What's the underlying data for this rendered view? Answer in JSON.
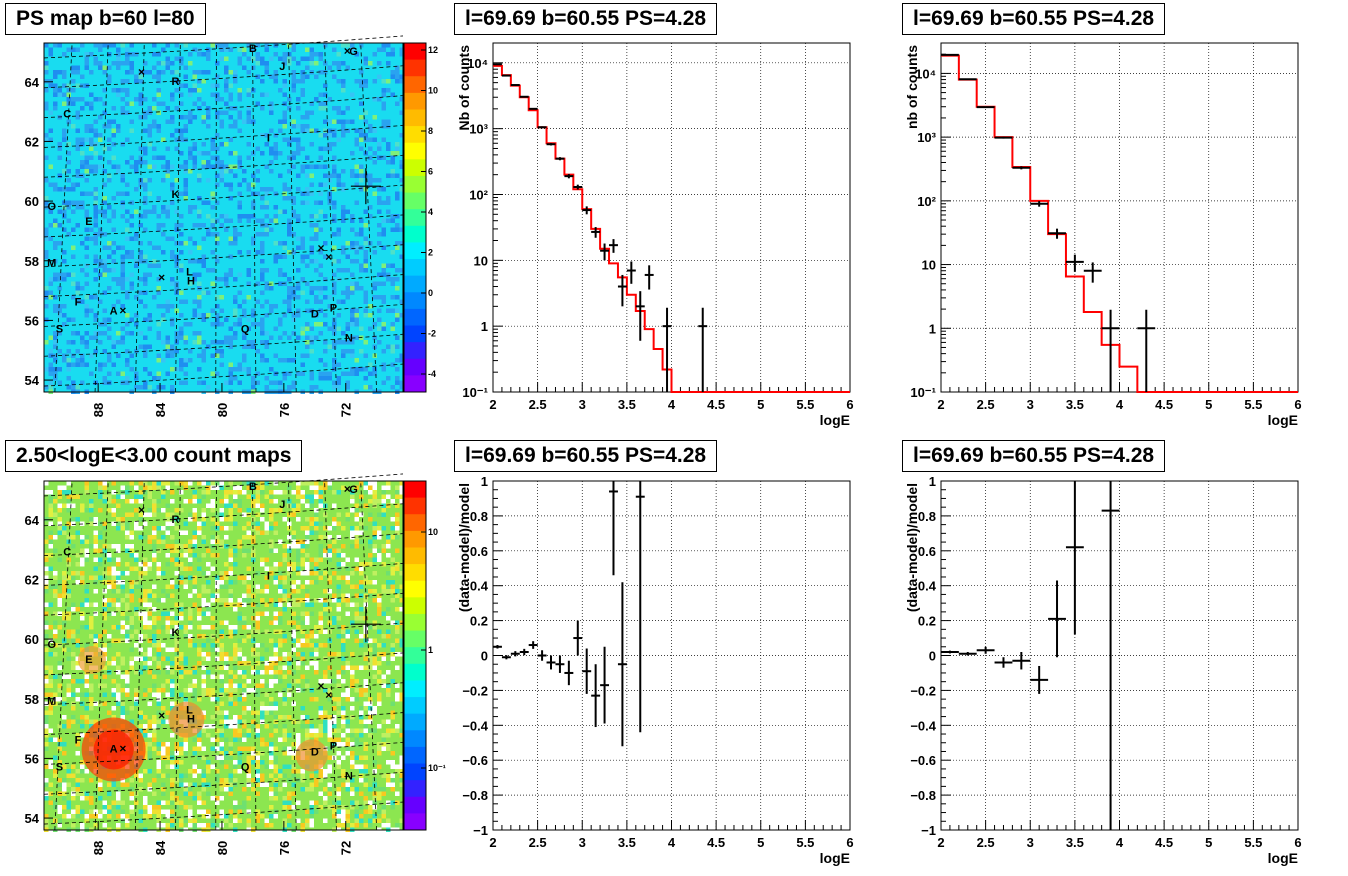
{
  "titles": {
    "map_top": "PS map b=60 l=80",
    "map_bottom": "2.50<logE<3.00 count maps",
    "spec_1": "l=69.69 b=60.55 PS=4.28",
    "spec_2": "l=69.69 b=60.55 PS=4.28",
    "res_1": "l=69.69 b=60.55 PS=4.28",
    "res_2": "l=69.69 b=60.55 PS=4.28"
  },
  "colors": {
    "model_line": "#ff0000",
    "data_marker": "#000000",
    "map_top_background": "#19dcf0",
    "map_bottom_background": "#8ce650"
  },
  "maps": {
    "x_tick_labels": [
      "88",
      "84",
      "80",
      "76",
      "72"
    ],
    "y_tick_labels": [
      "54",
      "56",
      "58",
      "60",
      "62",
      "64"
    ],
    "source_labels": [
      "A",
      "B",
      "C",
      "D",
      "E",
      "F",
      "G",
      "H",
      "I",
      "J",
      "K",
      "L",
      "M",
      "N",
      "O",
      "P",
      "Q",
      "R",
      "S"
    ],
    "top_palette_ticks": [
      "-4",
      "-2",
      "0",
      "2",
      "4",
      "6",
      "8",
      "10",
      "12"
    ],
    "bottom_palette_ticks": [
      "10⁻¹",
      "1",
      "10"
    ]
  },
  "chart_data": [
    {
      "type": "scatter",
      "title": "l=69.69 b=60.55 PS=4.28",
      "xlabel": "logE",
      "ylabel": "Nb of counts",
      "xlim": [
        2,
        6
      ],
      "ylim": [
        0.1,
        20000
      ],
      "log_y": true,
      "grid": true,
      "x_tick_labels": [
        "2",
        "2.5",
        "3",
        "3.5",
        "4",
        "4.5",
        "5",
        "5.5",
        "6"
      ],
      "y_tick_labels": [
        "10⁻¹",
        "1",
        "10",
        "10²",
        "10³",
        "10⁴"
      ],
      "series": [
        {
          "name": "model",
          "style": "step",
          "bin_edges": [
            2.0,
            2.1,
            2.2,
            2.3,
            2.4,
            2.5,
            2.6,
            2.7,
            2.8,
            2.9,
            3.0,
            3.1,
            3.2,
            3.3,
            3.4,
            3.5,
            3.6,
            3.7,
            3.8,
            3.9,
            4.0,
            4.1,
            6.0
          ],
          "values": [
            9000,
            6500,
            4500,
            3000,
            1900,
            1050,
            600,
            350,
            200,
            120,
            60,
            30,
            15,
            9,
            5.5,
            3,
            1.7,
            0.9,
            0.45,
            0.22,
            0.1,
            0.1
          ]
        },
        {
          "name": "data",
          "style": "errorbar",
          "x": [
            2.05,
            2.15,
            2.25,
            2.35,
            2.45,
            2.55,
            2.65,
            2.75,
            2.85,
            2.95,
            3.05,
            3.15,
            3.25,
            3.35,
            3.45,
            3.55,
            3.65,
            3.75,
            3.95,
            4.35
          ],
          "y": [
            9500,
            6400,
            4600,
            3050,
            2000,
            1050,
            580,
            350,
            190,
            130,
            58,
            27,
            14,
            17,
            4,
            7,
            2,
            6,
            1,
            1
          ],
          "yerr_low": [
            100,
            80,
            70,
            55,
            45,
            33,
            24,
            19,
            14,
            11,
            8,
            5,
            4,
            4,
            2,
            2.6,
            1.4,
            2.4,
            0.9,
            0.9
          ],
          "yerr_high": [
            100,
            80,
            70,
            55,
            45,
            33,
            24,
            19,
            14,
            11,
            8,
            5,
            4,
            4,
            2,
            2.6,
            1.4,
            2.4,
            0.9,
            0.9
          ]
        }
      ]
    },
    {
      "type": "scatter",
      "title": "l=69.69 b=60.55 PS=4.28",
      "xlabel": "logE",
      "ylabel": "nb of counts",
      "xlim": [
        2,
        6
      ],
      "ylim": [
        0.1,
        30000
      ],
      "log_y": true,
      "grid": true,
      "x_tick_labels": [
        "2",
        "2.5",
        "3",
        "3.5",
        "4",
        "4.5",
        "5",
        "5.5",
        "6"
      ],
      "y_tick_labels": [
        "10⁻¹",
        "1",
        "10",
        "10²",
        "10³",
        "10⁴"
      ],
      "series": [
        {
          "name": "model",
          "style": "step",
          "bin_edges": [
            2.0,
            2.2,
            2.4,
            2.6,
            2.8,
            3.0,
            3.2,
            3.4,
            3.6,
            3.8,
            4.0,
            4.2,
            4.4,
            6.0
          ],
          "values": [
            19000,
            8000,
            3000,
            1000,
            340,
            100,
            30,
            6.5,
            1.8,
            0.55,
            0.25,
            0.1,
            0.1
          ],
          "last_value": 0.1
        },
        {
          "name": "data",
          "style": "errorbar",
          "x": [
            2.1,
            2.3,
            2.5,
            2.7,
            2.9,
            3.1,
            3.3,
            3.5,
            3.7,
            3.9,
            4.3
          ],
          "y": [
            19500,
            8100,
            2950,
            980,
            330,
            90,
            31,
            11,
            8,
            1,
            1
          ],
          "yerr_low": [
            140,
            90,
            54,
            31,
            18,
            9,
            5.6,
            3.3,
            2.8,
            0.95,
            0.95
          ],
          "yerr_high": [
            140,
            90,
            54,
            31,
            18,
            9,
            5.6,
            3.3,
            2.8,
            0.95,
            0.95
          ]
        }
      ]
    },
    {
      "type": "scatter",
      "title": "l=69.69 b=60.55 PS=4.28",
      "xlabel": "logE",
      "ylabel": "(data-model)/model",
      "xlim": [
        2,
        6
      ],
      "ylim": [
        -1,
        1
      ],
      "grid": true,
      "x_tick_labels": [
        "2",
        "2.5",
        "3",
        "3.5",
        "4",
        "4.5",
        "5",
        "5.5",
        "6"
      ],
      "y_tick_labels": [
        "−1",
        "−0.8",
        "−0.6",
        "−0.4",
        "−0.2",
        "0",
        "0.2",
        "0.4",
        "0.6",
        "0.8",
        "1"
      ],
      "series": [
        {
          "name": "residual",
          "style": "errorbar",
          "x": [
            2.05,
            2.15,
            2.25,
            2.35,
            2.45,
            2.55,
            2.65,
            2.75,
            2.85,
            2.95,
            3.05,
            3.15,
            3.25,
            3.35,
            3.45,
            3.65
          ],
          "y": [
            0.05,
            -0.01,
            0.01,
            0.02,
            0.06,
            0.0,
            -0.04,
            -0.05,
            -0.1,
            0.1,
            -0.09,
            -0.23,
            -0.17,
            0.94,
            -0.05,
            0.91
          ],
          "yerr": [
            0.01,
            0.012,
            0.015,
            0.018,
            0.022,
            0.03,
            0.04,
            0.05,
            0.07,
            0.1,
            0.13,
            0.18,
            0.22,
            0.48,
            0.47,
            1.35
          ]
        }
      ]
    },
    {
      "type": "scatter",
      "title": "l=69.69 b=60.55 PS=4.28",
      "xlabel": "logE",
      "ylabel": "(data-model)/model",
      "xlim": [
        2,
        6
      ],
      "ylim": [
        -1,
        1
      ],
      "grid": true,
      "x_tick_labels": [
        "2",
        "2.5",
        "3",
        "3.5",
        "4",
        "4.5",
        "5",
        "5.5",
        "6"
      ],
      "y_tick_labels": [
        "−1",
        "−0.8",
        "−0.6",
        "−0.4",
        "−0.2",
        "0",
        "0.2",
        "0.4",
        "0.6",
        "0.8",
        "1"
      ],
      "series": [
        {
          "name": "residual",
          "style": "errorbar",
          "x": [
            2.1,
            2.3,
            2.5,
            2.7,
            2.9,
            3.1,
            3.3,
            3.5,
            3.9
          ],
          "y": [
            0.02,
            0.01,
            0.03,
            -0.04,
            -0.03,
            -0.14,
            0.21,
            0.62,
            0.83
          ],
          "yerr": [
            0.008,
            0.01,
            0.02,
            0.03,
            0.05,
            0.08,
            0.22,
            0.5,
            1.9
          ]
        }
      ]
    }
  ]
}
